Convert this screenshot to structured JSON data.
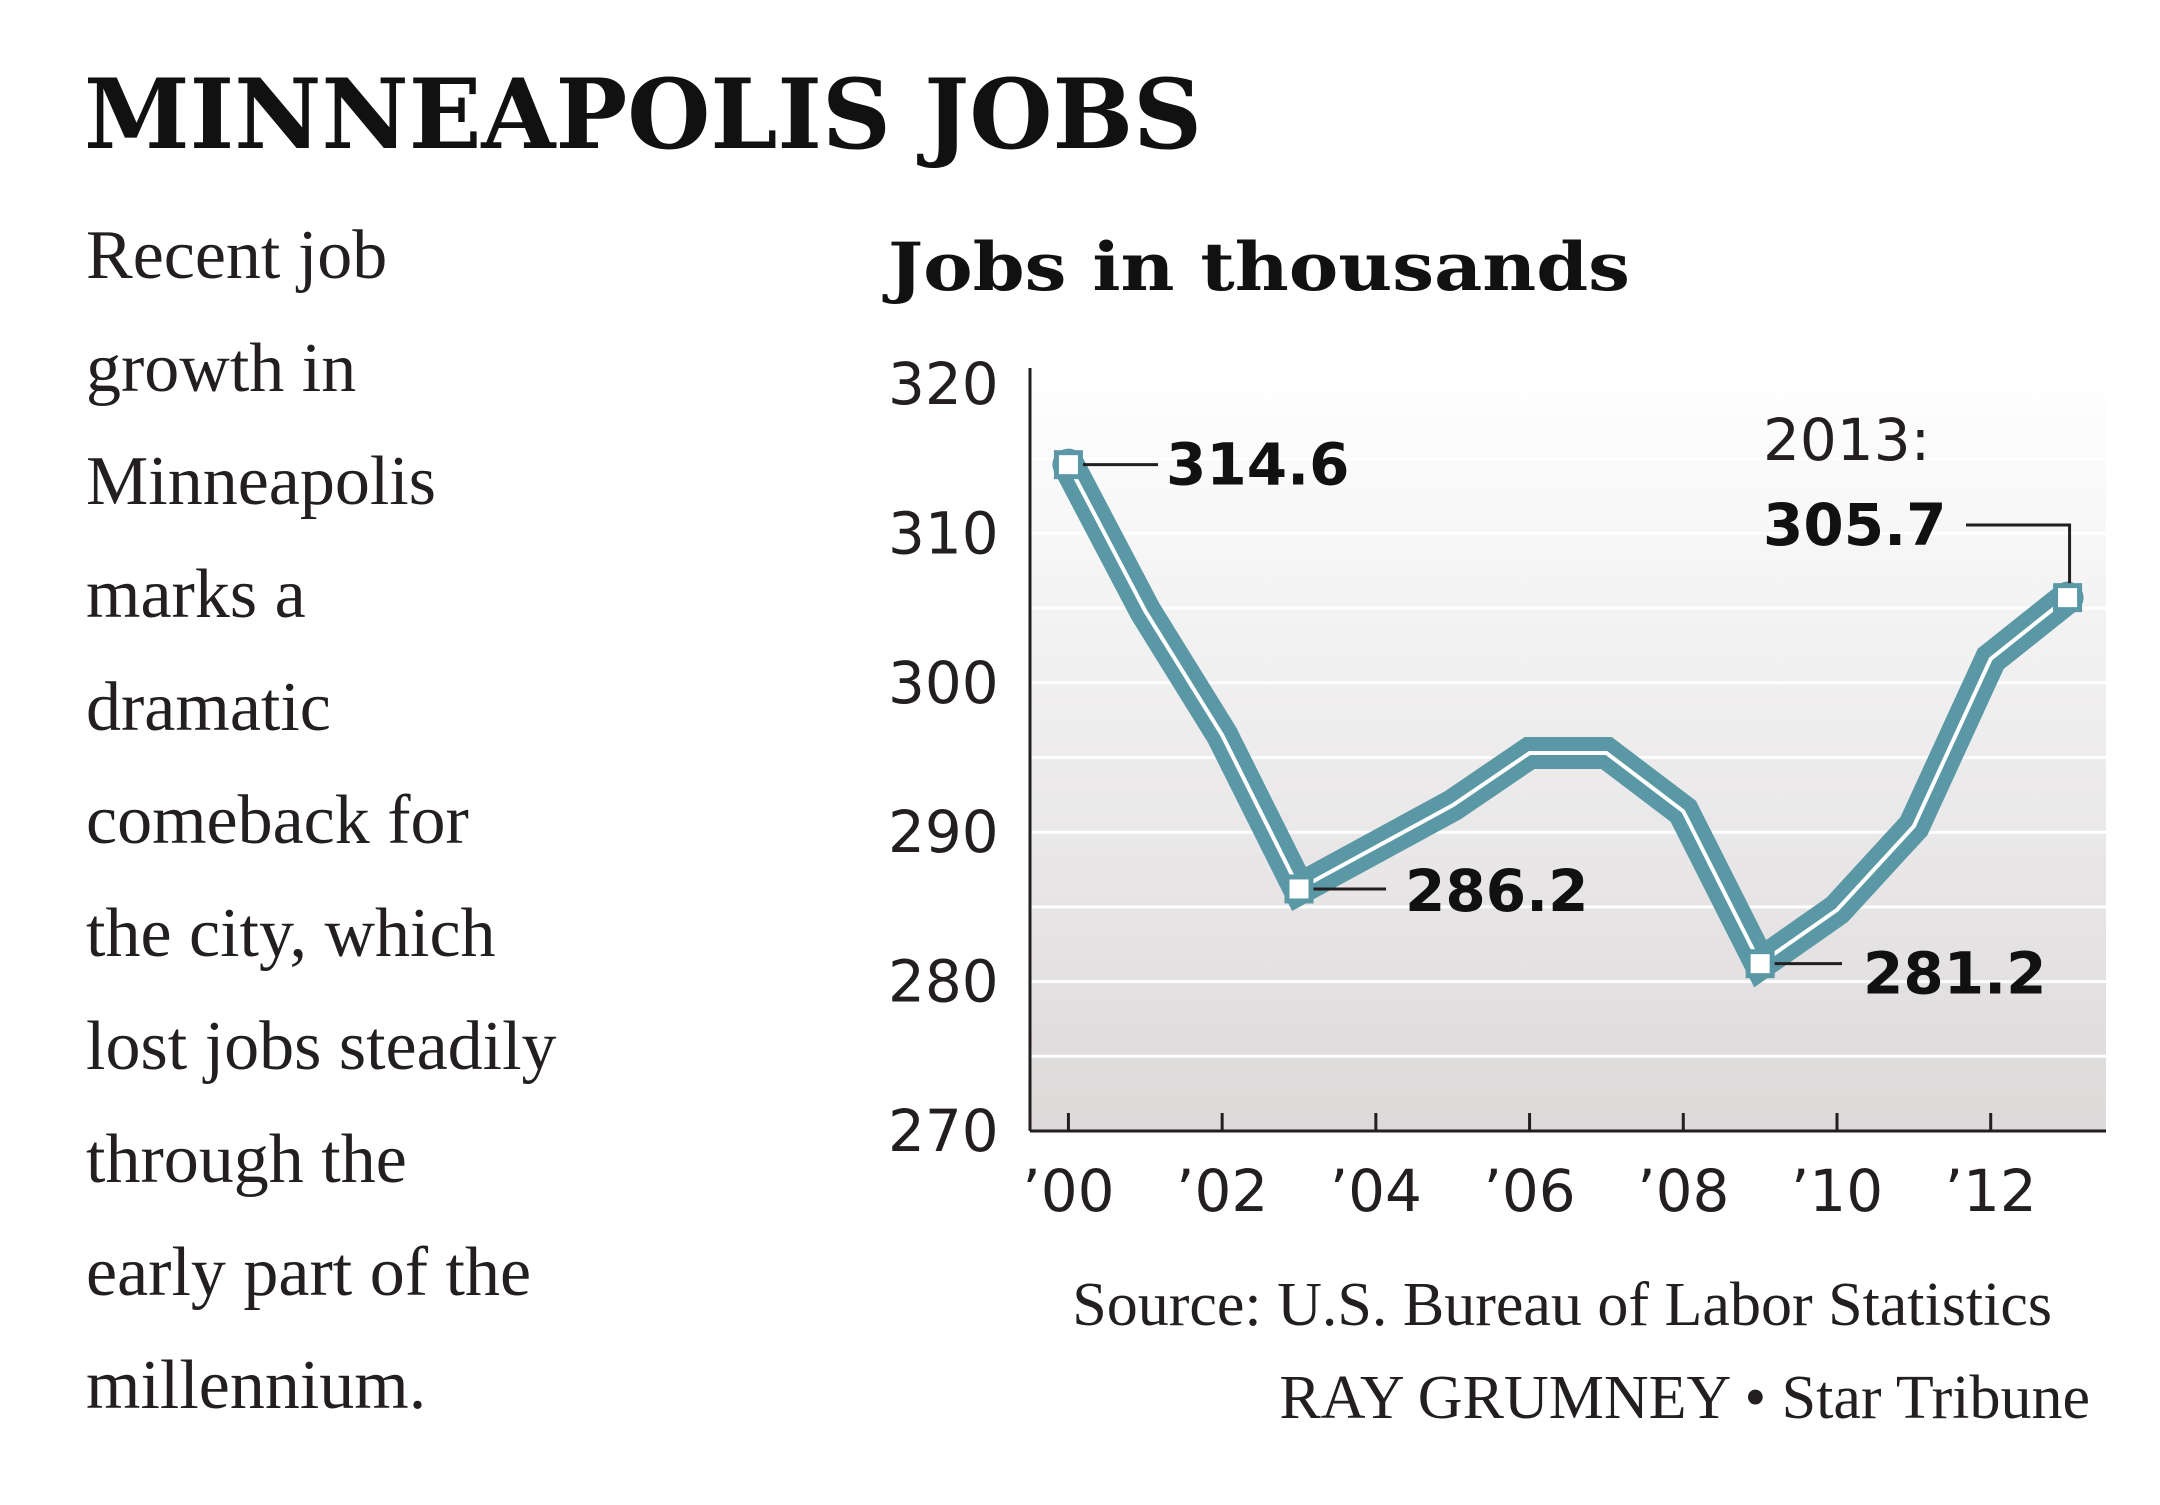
{
  "title": "MINNEAPOLIS JOBS",
  "description_lines": [
    "Recent job",
    "growth in",
    "Minneapolis",
    "marks a",
    "dramatic",
    "comeback for",
    "the city, which",
    "lost jobs steadily",
    "through the",
    "early part of the",
    "millennium."
  ],
  "chart_data": {
    "type": "line",
    "subtitle": "Jobs in thousands",
    "x": [
      2000,
      2001,
      2002,
      2003,
      2004,
      2005,
      2006,
      2007,
      2008,
      2009,
      2010,
      2011,
      2012,
      2013
    ],
    "series": [
      {
        "name": "Minneapolis jobs",
        "color": "#5b98a5",
        "values": [
          314.6,
          304.8,
          296.5,
          286.2,
          289,
          291.8,
          295.3,
          295.3,
          291.4,
          281.2,
          284.8,
          290.4,
          301.6,
          305.7
        ]
      }
    ],
    "annotation": "2013:",
    "xlim": [
      1999.5,
      2013.5
    ],
    "xticks": [
      {
        "value": 2000,
        "label": "’00"
      },
      {
        "value": 2002,
        "label": "’02"
      },
      {
        "value": 2004,
        "label": "’04"
      },
      {
        "value": 2006,
        "label": "’06"
      },
      {
        "value": 2008,
        "label": "’08"
      },
      {
        "value": 2010,
        "label": "’10"
      },
      {
        "value": 2012,
        "label": "’12"
      }
    ],
    "ylim": [
      270,
      320
    ],
    "yticks": [
      270,
      280,
      290,
      300,
      310,
      320
    ],
    "minor_yticks": [
      275,
      285,
      295,
      305,
      315
    ],
    "grid": true,
    "source": "Source: U.S. Bureau of Labor Statistics",
    "credit": "RAY GRUMNEY • Star Tribune"
  }
}
